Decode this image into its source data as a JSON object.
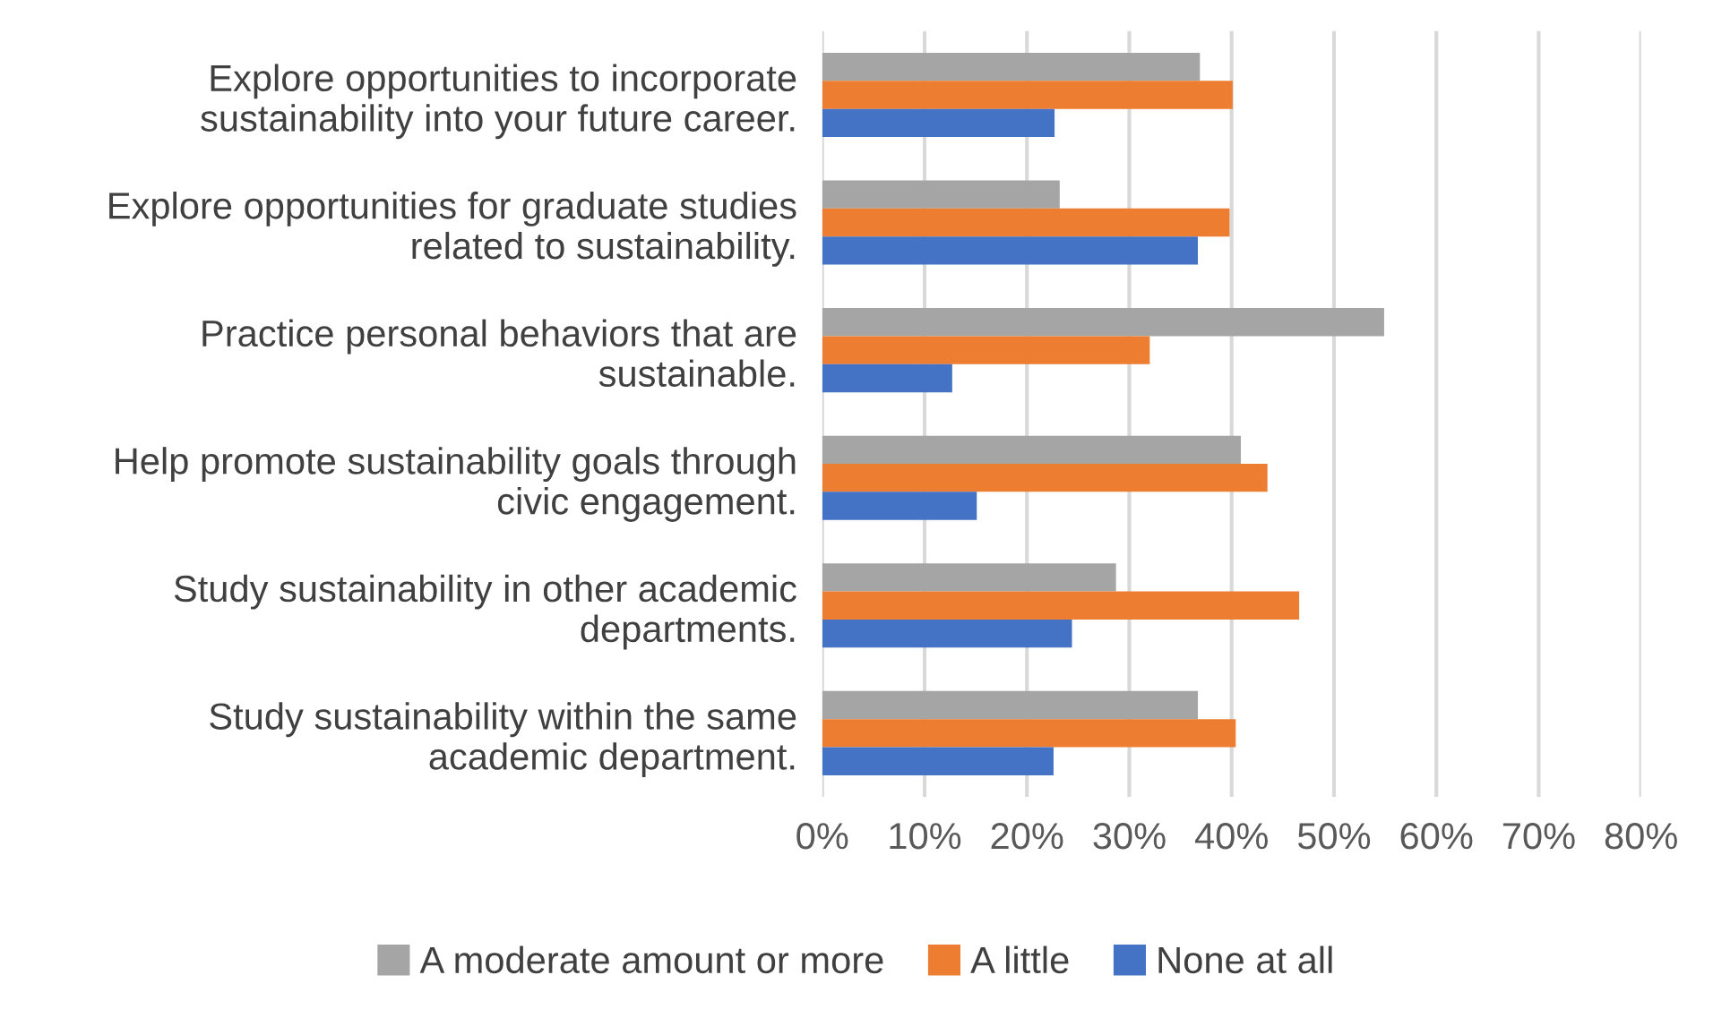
{
  "chart_data": {
    "type": "bar",
    "orientation": "horizontal",
    "categories": [
      "Explore opportunities to incorporate\nsustainability into your future career.",
      "Explore opportunities for graduate studies\nrelated to sustainability.",
      "Practice personal behaviors that are\nsustainable.",
      "Help promote sustainability goals through\ncivic engagement.",
      "Study sustainability in other academic\ndepartments.",
      "Study sustainability within the same\nacademic department."
    ],
    "series": [
      {
        "name": "A moderate amount or more",
        "color": "#a5a5a5",
        "values": [
          36.9,
          23.2,
          54.9,
          40.9,
          28.7,
          36.7
        ]
      },
      {
        "name": "A little",
        "color": "#ed7d31",
        "values": [
          40.1,
          39.8,
          32.0,
          43.5,
          46.6,
          40.4
        ]
      },
      {
        "name": "None at all",
        "color": "#4472c4",
        "values": [
          22.7,
          36.7,
          12.7,
          15.1,
          24.4,
          22.6
        ]
      }
    ],
    "xlim": [
      0,
      80
    ],
    "xticks": [
      {
        "value": 0,
        "label": "0%"
      },
      {
        "value": 10,
        "label": "10%"
      },
      {
        "value": 20,
        "label": "20%"
      },
      {
        "value": 30,
        "label": "30%"
      },
      {
        "value": 40,
        "label": "40%"
      },
      {
        "value": 50,
        "label": "50%"
      },
      {
        "value": 60,
        "label": "60%"
      },
      {
        "value": 70,
        "label": "70%"
      },
      {
        "value": 80,
        "label": "80%"
      }
    ],
    "grid": "x",
    "legend": "bottom"
  }
}
